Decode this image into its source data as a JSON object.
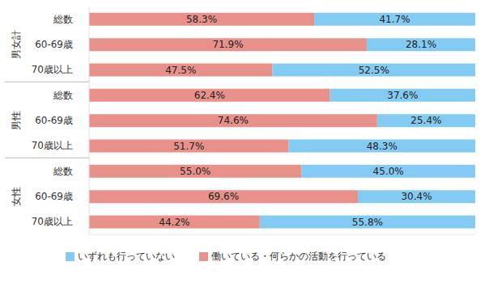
{
  "chart_data": {
    "type": "bar",
    "orientation": "horizontal",
    "stacked": true,
    "data_labels": true,
    "legend": "bottom",
    "grid": true,
    "tick_labels": "y",
    "groups": [
      "男女計",
      "男性",
      "女性"
    ],
    "categories": [
      "総数",
      "60-69歳",
      "70歳以上",
      "総数",
      "60-69歳",
      "70歳以上",
      "総数",
      "60-69歳",
      "70歳以上"
    ],
    "xlim": [
      0,
      100
    ],
    "xticks": [
      0,
      10,
      20,
      30,
      40,
      50,
      60,
      70,
      80,
      90,
      100
    ],
    "series": [
      {
        "name": "働いている・何らかの活動を行っている",
        "color": "#e8918a",
        "values": [
          58.3,
          71.9,
          47.5,
          62.4,
          74.6,
          51.7,
          55.0,
          69.6,
          44.2
        ],
        "value_labels": [
          "58.3%",
          "71.9%",
          "47.5%",
          "62.4%",
          "74.6%",
          "51.7%",
          "55.0%",
          "69.6%",
          "44.2%"
        ]
      },
      {
        "name": "いずれも行っていない",
        "color": "#84cbf3",
        "values": [
          41.7,
          28.1,
          52.5,
          37.6,
          25.4,
          48.3,
          45.0,
          30.4,
          55.8
        ],
        "value_labels": [
          "41.7%",
          "28.1%",
          "52.5%",
          "37.6%",
          "25.4%",
          "48.3%",
          "45.0%",
          "30.4%",
          "55.8%"
        ]
      }
    ]
  }
}
